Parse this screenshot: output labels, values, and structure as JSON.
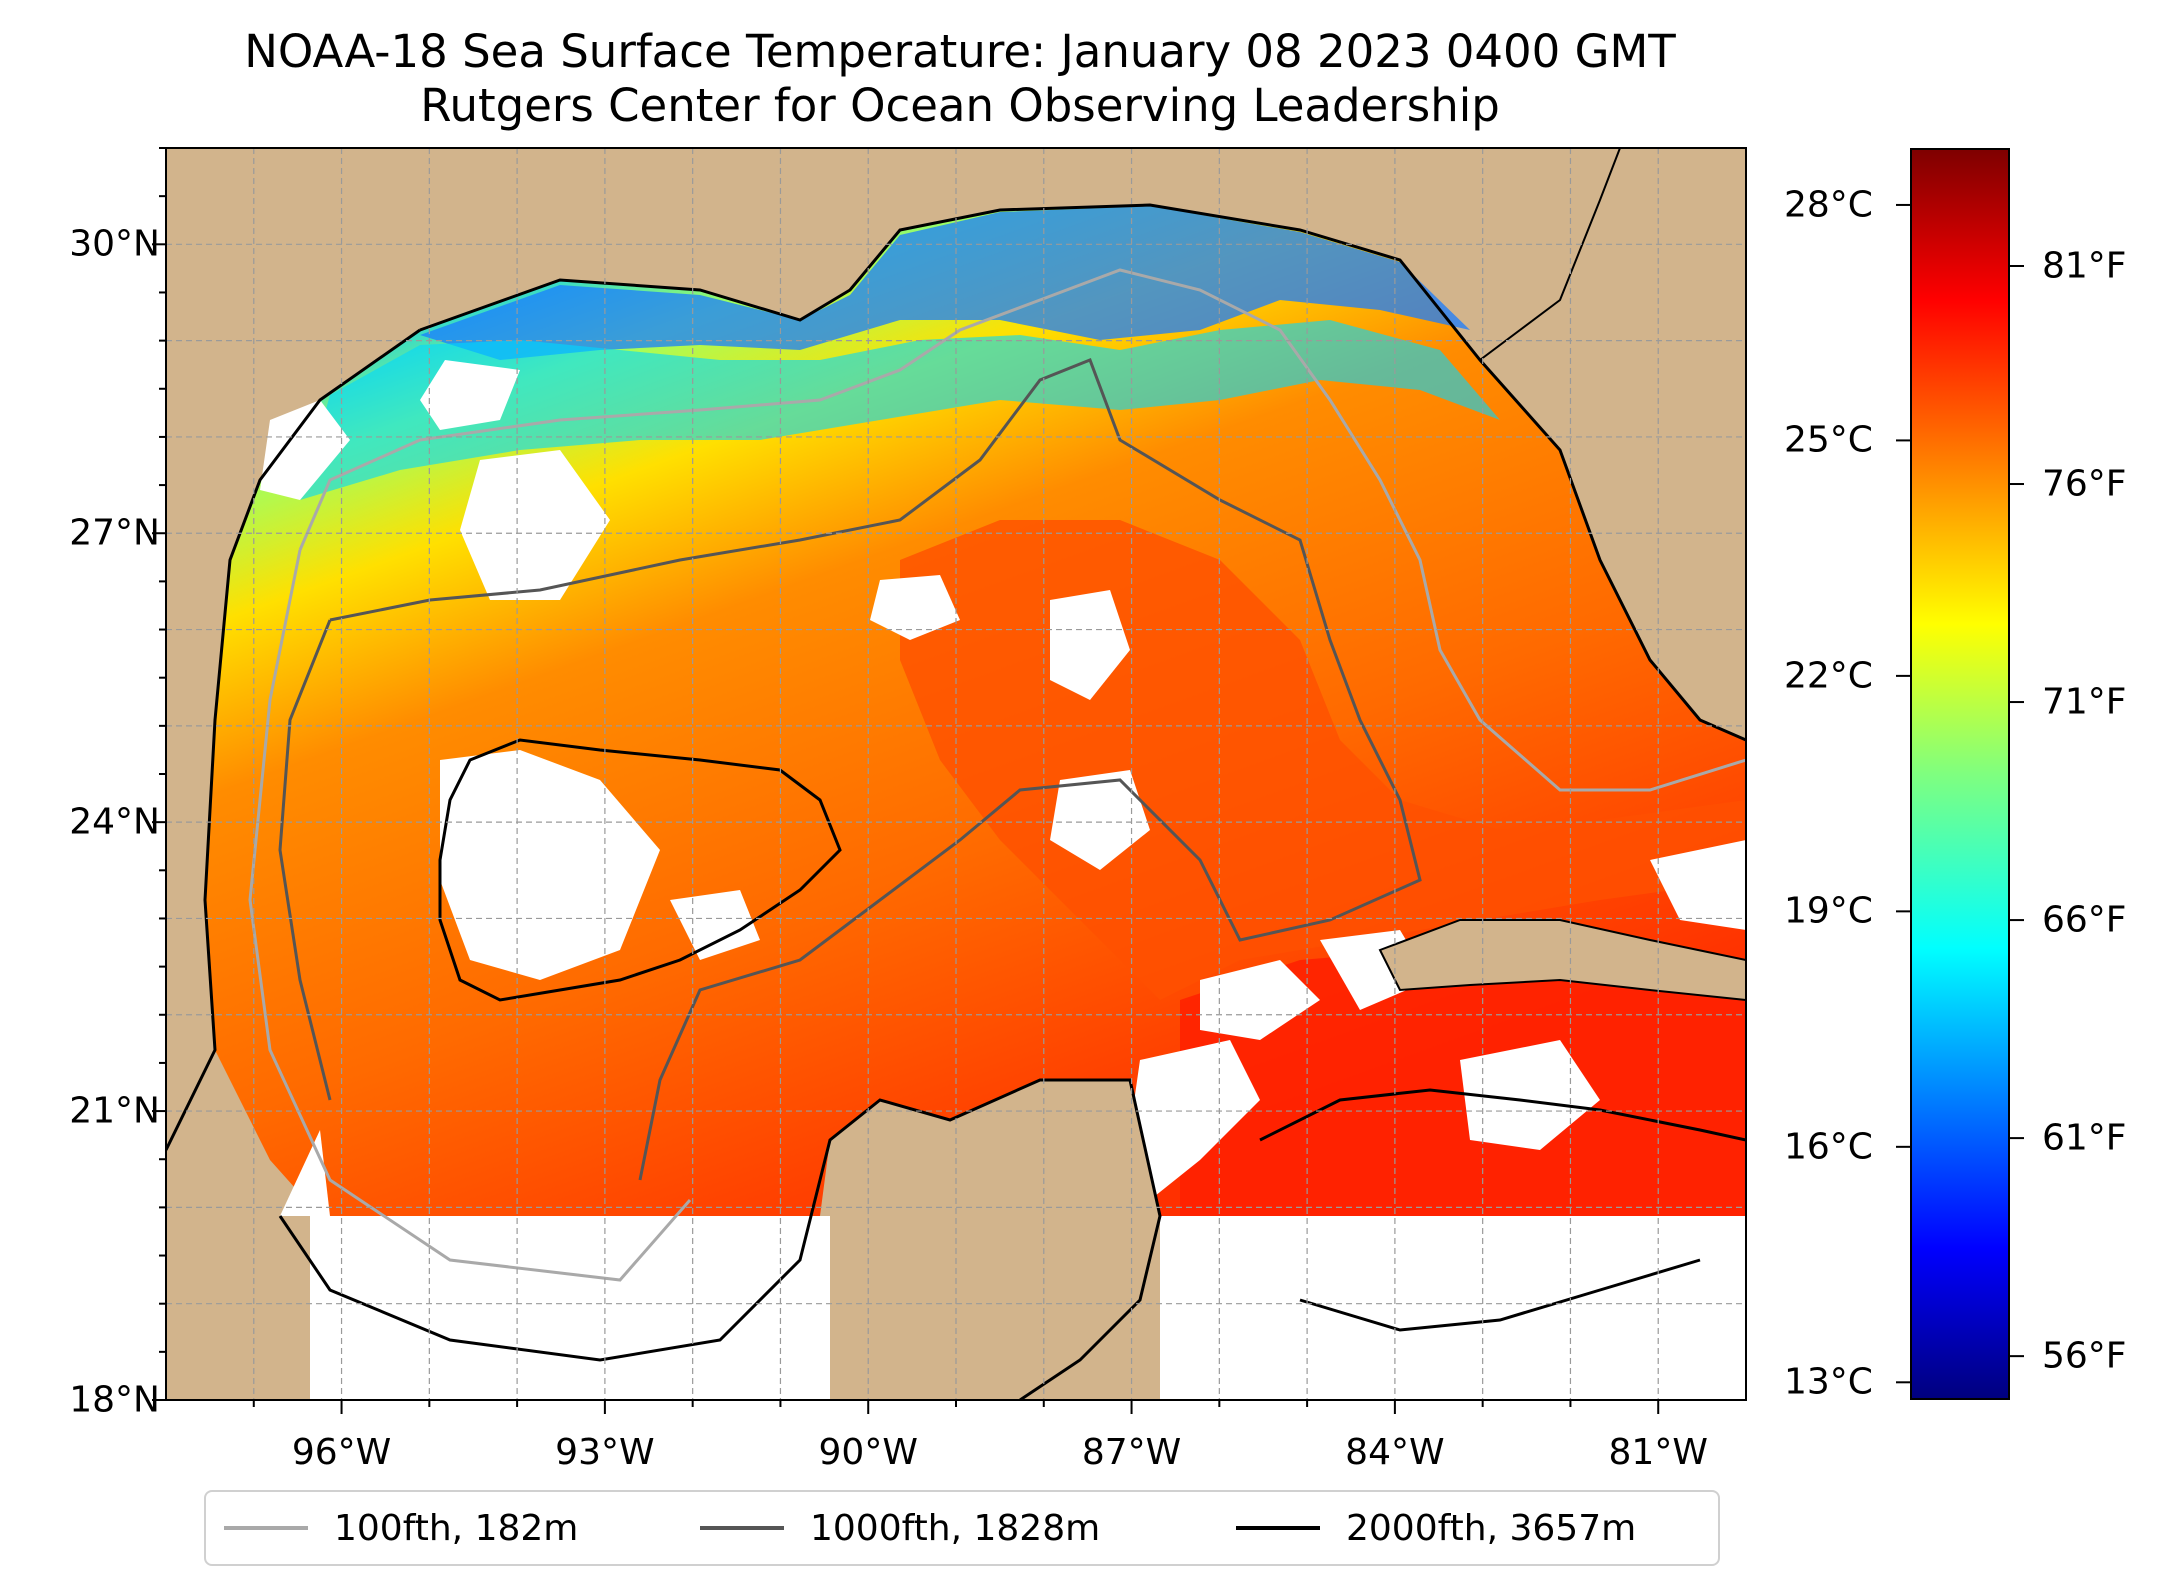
{
  "title": {
    "line1": "NOAA-18 Sea Surface Temperature: January 08 2023 0400 GMT",
    "line2": "Rutgers Center for Ocean Observing Leadership"
  },
  "map": {
    "lat_labels": [
      "18°N",
      "21°N",
      "24°N",
      "27°N",
      "30°N"
    ],
    "lat_values": [
      18,
      21,
      24,
      27,
      30
    ],
    "lon_labels": [
      "96°W",
      "93°W",
      "90°W",
      "87°W",
      "84°W",
      "81°W"
    ],
    "lon_values": [
      -96,
      -93,
      -90,
      -87,
      -84,
      -81
    ],
    "lat_range": [
      18,
      31
    ],
    "lon_range": [
      -98,
      -80
    ],
    "land_color": "#d2b48c",
    "no_data_color": "#ffffff",
    "grid": true
  },
  "colorbar": {
    "celsius_labels": [
      "13°C",
      "16°C",
      "19°C",
      "22°C",
      "25°C",
      "28°C"
    ],
    "celsius_values": [
      13,
      16,
      19,
      22,
      25,
      28
    ],
    "fahrenheit_labels": [
      "56°F",
      "61°F",
      "66°F",
      "71°F",
      "76°F",
      "81°F"
    ],
    "fahrenheit_values": [
      56,
      61,
      66,
      71,
      76,
      81
    ],
    "range_celsius": [
      12.8,
      28.7
    ],
    "colormap": "jet"
  },
  "legend": {
    "items": [
      {
        "label": "100fth, 182m",
        "color": "#a9a9a9"
      },
      {
        "label": "1000fth, 1828m",
        "color": "#555555"
      },
      {
        "label": "2000fth, 3657m",
        "color": "#000000"
      }
    ]
  }
}
